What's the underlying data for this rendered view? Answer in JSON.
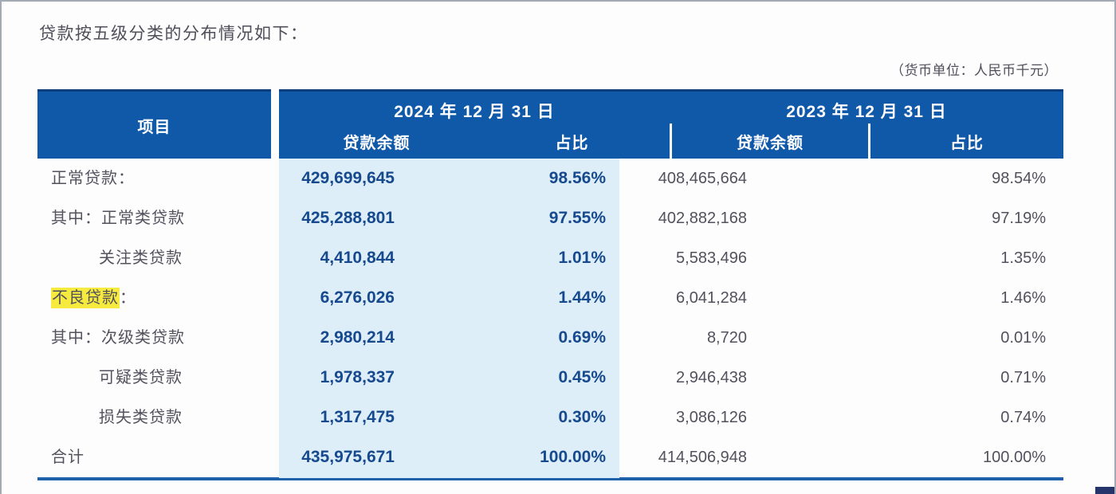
{
  "title": "贷款按五级分类的分布情况如下：",
  "unit_note": "（货币单位：人民币千元）",
  "table": {
    "item_header": "项目",
    "periods": [
      {
        "label": "2024 年 12 月 31 日",
        "col_balance": "贷款余额",
        "col_pct": "占比"
      },
      {
        "label": "2023 年 12 月 31 日",
        "col_balance": "贷款余额",
        "col_pct": "占比"
      }
    ],
    "rows": [
      {
        "prefix": "",
        "label": "正常贷款",
        "suffix": "：",
        "indent": false,
        "highlight": false,
        "balance_2024": "429,699,645",
        "pct_2024": "98.56%",
        "balance_2023": "408,465,664",
        "pct_2023": "98.54%"
      },
      {
        "prefix": "其中：",
        "label": "正常类贷款",
        "suffix": "",
        "indent": false,
        "highlight": false,
        "balance_2024": "425,288,801",
        "pct_2024": "97.55%",
        "balance_2023": "402,882,168",
        "pct_2023": "97.19%"
      },
      {
        "prefix": "",
        "label": "关注类贷款",
        "suffix": "",
        "indent": true,
        "highlight": false,
        "balance_2024": "4,410,844",
        "pct_2024": "1.01%",
        "balance_2023": "5,583,496",
        "pct_2023": "1.35%"
      },
      {
        "prefix": "",
        "label": "不良贷款",
        "suffix": "：",
        "indent": false,
        "highlight": true,
        "balance_2024": "6,276,026",
        "pct_2024": "1.44%",
        "balance_2023": "6,041,284",
        "pct_2023": "1.46%"
      },
      {
        "prefix": "其中：",
        "label": "次级类贷款",
        "suffix": "",
        "indent": false,
        "highlight": false,
        "balance_2024": "2,980,214",
        "pct_2024": "0.69%",
        "balance_2023": "8,720",
        "pct_2023": "0.01%"
      },
      {
        "prefix": "",
        "label": "可疑类贷款",
        "suffix": "",
        "indent": true,
        "highlight": false,
        "balance_2024": "1,978,337",
        "pct_2024": "0.45%",
        "balance_2023": "2,946,438",
        "pct_2023": "0.71%"
      },
      {
        "prefix": "",
        "label": "损失类贷款",
        "suffix": "",
        "indent": true,
        "highlight": false,
        "balance_2024": "1,317,475",
        "pct_2024": "0.30%",
        "balance_2023": "3,086,126",
        "pct_2023": "0.74%"
      },
      {
        "prefix": "",
        "label": "合计",
        "suffix": "",
        "indent": false,
        "highlight": false,
        "balance_2024": "435,975,671",
        "pct_2024": "100.00%",
        "balance_2023": "414,506,948",
        "pct_2023": "100.00%"
      }
    ]
  },
  "colors": {
    "header_blue": "#1059a9",
    "header_top_border": "#0a3e7c",
    "highlight_band_blue": "#ddeef8",
    "value_blue": "#17498e",
    "text_gray": "#52515c",
    "bottom_border_blue": "#1e62ab",
    "highlight_yellow": "#f6ea3e"
  }
}
